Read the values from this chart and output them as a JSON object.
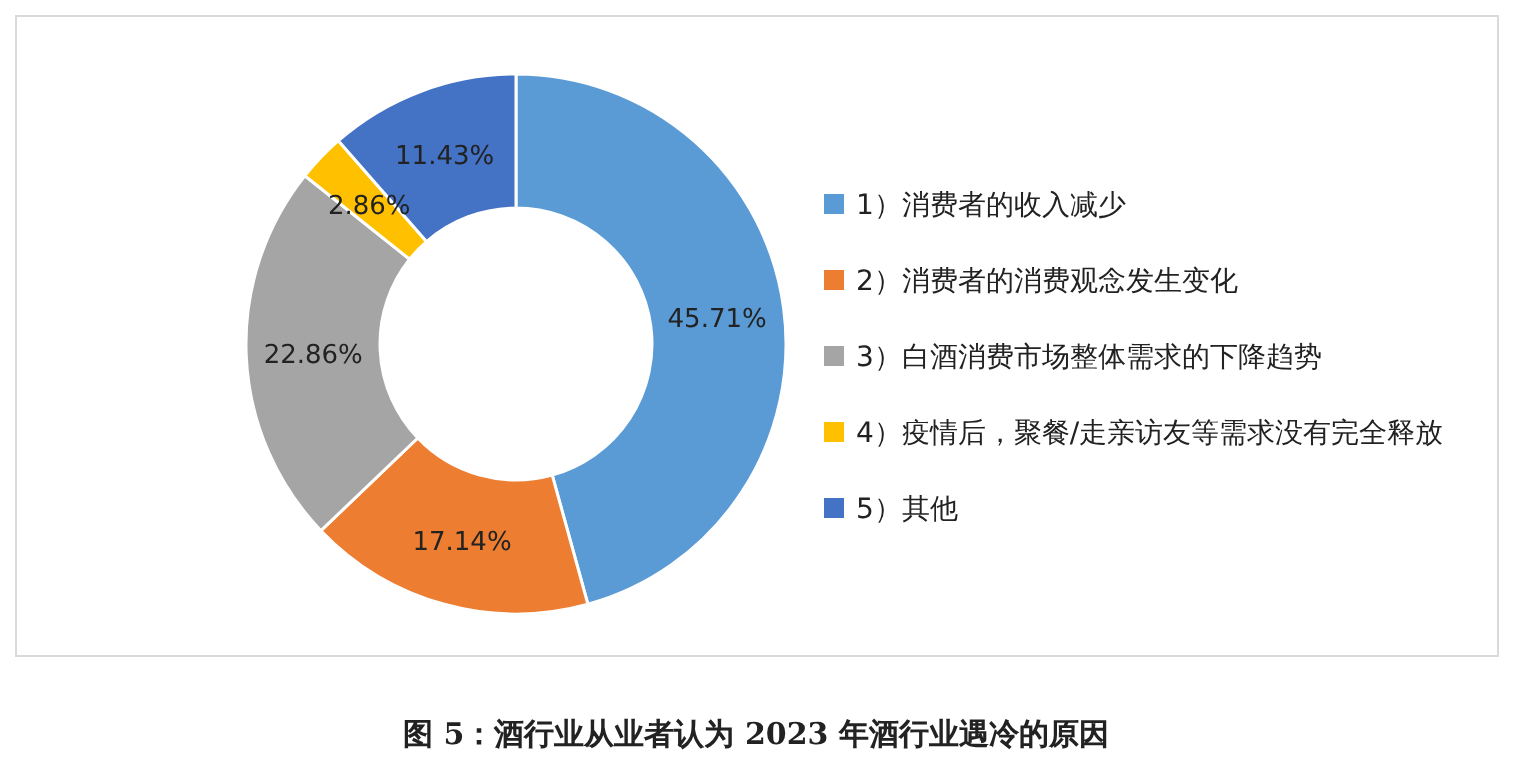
{
  "chart_data": {
    "type": "donut",
    "title": "图 5：酒行业从业者认为 2023 年酒行业遇冷的原因",
    "categories": [
      "1）消费者的收入减少",
      "2）消费者的消费观念发生变化",
      "3）白酒消费市场整体需求的下降趋势",
      "4）疫情后，聚餐/走亲访友等需求没有完全释放",
      "5）其他"
    ],
    "values": [
      45.71,
      17.14,
      22.86,
      2.86,
      11.43
    ],
    "colors": [
      "#5b9bd5",
      "#ed7d31",
      "#a5a5a5",
      "#ffc000",
      "#4472c4"
    ],
    "value_labels": [
      "45.71%",
      "17.14%",
      "22.86%",
      "2.86%",
      "11.43%"
    ],
    "legend": "right"
  }
}
